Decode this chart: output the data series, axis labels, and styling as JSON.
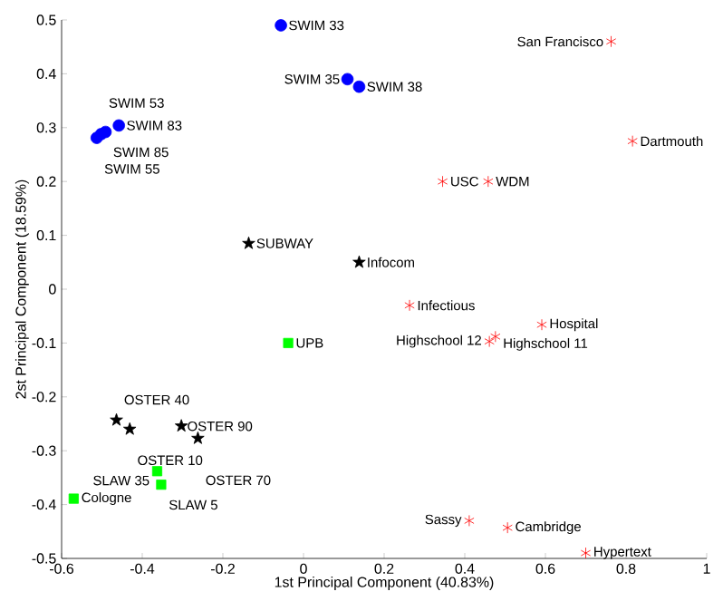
{
  "chart_data": {
    "type": "scatter",
    "xlabel": "1st Principal Component (40.83%)",
    "ylabel": "2st Principal Component (18.59%)",
    "xlim": [
      -0.6,
      1
    ],
    "ylim": [
      -0.5,
      0.5
    ],
    "xticks": [
      -0.6,
      -0.4,
      -0.2,
      0,
      0.2,
      0.4,
      0.6,
      0.8,
      1
    ],
    "yticks": [
      -0.5,
      -0.4,
      -0.3,
      -0.2,
      -0.1,
      0,
      0.1,
      0.2,
      0.3,
      0.4,
      0.5
    ],
    "series": [
      {
        "marker": "circle",
        "color": "#0000ff",
        "x": [
          -0.056,
          0.109,
          0.138,
          -0.458,
          -0.491,
          -0.502,
          -0.513
        ],
        "values": [
          0.49,
          0.39,
          0.376,
          0.304,
          0.292,
          0.288,
          0.281
        ]
      },
      {
        "marker": "cross",
        "color": "#ff0000",
        "x": [
          0.763,
          0.816,
          0.345,
          0.458,
          0.263,
          0.591,
          0.476,
          0.461,
          0.411,
          0.506,
          0.7
        ],
        "values": [
          0.46,
          0.275,
          0.2,
          0.2,
          -0.03,
          -0.066,
          -0.088,
          -0.097,
          -0.43,
          -0.443,
          -0.49
        ]
      },
      {
        "marker": "star",
        "color": "#000000",
        "x": [
          -0.136,
          0.138,
          -0.464,
          -0.431,
          -0.303,
          -0.262
        ],
        "values": [
          0.085,
          0.05,
          -0.243,
          -0.26,
          -0.254,
          -0.277
        ]
      },
      {
        "marker": "square",
        "color": "#00ff00",
        "x": [
          -0.038,
          -0.57,
          -0.363,
          -0.353
        ],
        "values": [
          -0.1,
          -0.389,
          -0.338,
          -0.363
        ]
      }
    ],
    "annotations": [
      {
        "text": "SWIM 33",
        "x": -0.056,
        "y": 0.49
      },
      {
        "text": "SWIM 35",
        "x": 0.109,
        "y": 0.39
      },
      {
        "text": "SWIM 38",
        "x": 0.138,
        "y": 0.376
      },
      {
        "text": "SWIM 83",
        "x": -0.458,
        "y": 0.304
      },
      {
        "text": "SWIM 85",
        "x": -0.491,
        "y": 0.292
      },
      {
        "text": "SWIM 53",
        "x": -0.502,
        "y": 0.288
      },
      {
        "text": "SWIM 55",
        "x": -0.513,
        "y": 0.281
      },
      {
        "text": "San Francisco",
        "x": 0.763,
        "y": 0.46
      },
      {
        "text": "Dartmouth",
        "x": 0.816,
        "y": 0.275
      },
      {
        "text": "USC",
        "x": 0.345,
        "y": 0.2
      },
      {
        "text": "WDM",
        "x": 0.458,
        "y": 0.2
      },
      {
        "text": "Infectious",
        "x": 0.263,
        "y": -0.03
      },
      {
        "text": "Hospital",
        "x": 0.591,
        "y": -0.066
      },
      {
        "text": "Highschool 11",
        "x": 0.476,
        "y": -0.088
      },
      {
        "text": "Highschool 12",
        "x": 0.461,
        "y": -0.097
      },
      {
        "text": "Sassy",
        "x": 0.411,
        "y": -0.43
      },
      {
        "text": "Cambridge",
        "x": 0.506,
        "y": -0.443
      },
      {
        "text": "Hypertext",
        "x": 0.7,
        "y": -0.49
      },
      {
        "text": "SUBWAY",
        "x": -0.136,
        "y": 0.085
      },
      {
        "text": "Infocom",
        "x": 0.138,
        "y": 0.05
      },
      {
        "text": "OSTER 40",
        "x": -0.464,
        "y": -0.243
      },
      {
        "text": "OSTER 10",
        "x": -0.431,
        "y": -0.26
      },
      {
        "text": "OSTER 90",
        "x": -0.303,
        "y": -0.254
      },
      {
        "text": "OSTER 70",
        "x": -0.262,
        "y": -0.277
      },
      {
        "text": "UPB",
        "x": -0.038,
        "y": -0.1
      },
      {
        "text": "Cologne",
        "x": -0.57,
        "y": -0.389
      },
      {
        "text": "SLAW 35",
        "x": -0.363,
        "y": -0.338
      },
      {
        "text": "SLAW 5",
        "x": -0.353,
        "y": -0.363
      }
    ]
  }
}
